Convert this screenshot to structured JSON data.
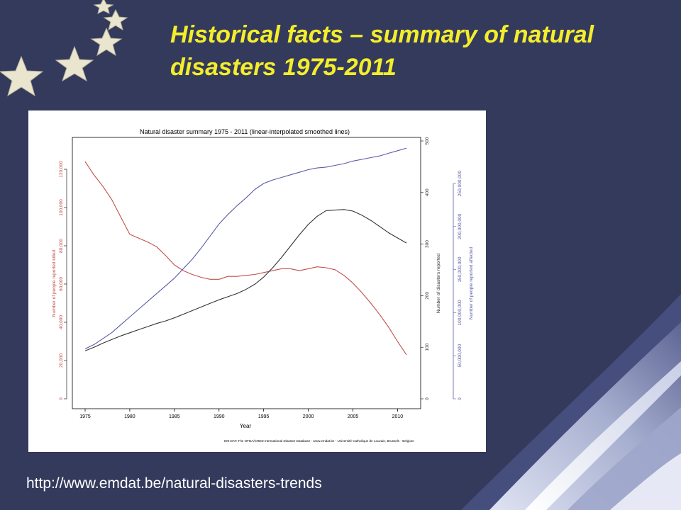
{
  "slide": {
    "title_line1": "Historical facts – summary of natural",
    "title_line2": "disasters 1975-2011",
    "url": "http://www.emdat.be/natural-disasters-trends"
  },
  "colors": {
    "background": "#343a5c",
    "title": "#f4ee2a",
    "killed": "#c0504d",
    "reported": "#333333",
    "affected": "#5a5aa8"
  },
  "chart_data": {
    "type": "line",
    "title": "Natural disaster summary 1975 - 2011 (linear-interpolated smoothed lines)",
    "xlabel": "Year",
    "xlim": [
      1975,
      2011
    ],
    "xticks": [
      1975,
      1980,
      1985,
      1990,
      1995,
      2000,
      2005,
      2010
    ],
    "source": "EM-DAT: The OFDA/CRED International Disaster Database - www.emdat.be - Université Catholique de Louvain, Brussels - Belgium",
    "grid": false,
    "axes": {
      "killed": {
        "label": "Number of people reported killed",
        "ylim": [
          0,
          140000
        ],
        "ticks": [
          0,
          20000,
          40000,
          60000,
          80000,
          100000,
          120000
        ],
        "tick_labels": [
          "0",
          "20,000",
          "40,000",
          "60,000",
          "80,000",
          "100,000",
          "120,000"
        ]
      },
      "reported": {
        "label": "Number of disasters reported",
        "ylim": [
          0,
          500
        ],
        "ticks": [
          0,
          100,
          200,
          300,
          400,
          500
        ],
        "tick_labels": [
          "0",
          "100",
          "200",
          "300",
          "400",
          "500"
        ]
      },
      "affected": {
        "label": "Number of people reported affected",
        "ylim": [
          0,
          275000000
        ],
        "ticks": [
          0,
          50000000,
          100000000,
          150000000,
          200000000,
          250000000
        ],
        "tick_labels": [
          "0",
          "50,000,000",
          "100,000,000",
          "150,000,000",
          "200,000,000",
          "250,000,000"
        ]
      }
    },
    "series": [
      {
        "axis": "killed",
        "x": [
          1975,
          1976,
          1977,
          1978,
          1979,
          1980,
          1981,
          1982,
          1983,
          1984,
          1985,
          1986,
          1987,
          1988,
          1989,
          1990,
          1991,
          1992,
          1993,
          1994,
          1995,
          1996,
          1997,
          1998,
          1999,
          2000,
          2001,
          2002,
          2003,
          2004,
          2005,
          2006,
          2007,
          2008,
          2009,
          2010,
          2011
        ],
        "values": [
          124000,
          117000,
          111000,
          104000,
          95000,
          86000,
          84000,
          82000,
          79500,
          75000,
          70000,
          67000,
          65000,
          63500,
          62500,
          62500,
          64000,
          64000,
          64500,
          65000,
          66000,
          67000,
          68000,
          68000,
          67000,
          68000,
          69000,
          68500,
          67500,
          64500,
          60500,
          55500,
          50000,
          44000,
          37500,
          30000,
          23000
        ]
      },
      {
        "axis": "reported",
        "x": [
          1975,
          1976,
          1977,
          1978,
          1979,
          1980,
          1981,
          1982,
          1983,
          1984,
          1985,
          1986,
          1987,
          1988,
          1989,
          1990,
          1991,
          1992,
          1993,
          1994,
          1995,
          1996,
          1997,
          1998,
          1999,
          2000,
          2001,
          2002,
          2003,
          2004,
          2005,
          2006,
          2007,
          2008,
          2009,
          2010,
          2011
        ],
        "values": [
          93,
          100,
          108,
          115,
          122,
          128,
          134,
          140,
          146,
          151,
          157,
          164,
          171,
          178,
          185,
          192,
          198,
          204,
          212,
          222,
          236,
          254,
          274,
          296,
          318,
          338,
          354,
          365,
          366,
          367,
          364,
          356,
          346,
          334,
          322,
          312,
          302
        ]
      },
      {
        "axis": "affected",
        "x": [
          1975,
          1976,
          1977,
          1978,
          1979,
          1980,
          1981,
          1982,
          1983,
          1984,
          1985,
          1986,
          1987,
          1988,
          1989,
          1990,
          1991,
          1992,
          1993,
          1994,
          1995,
          1996,
          1997,
          1998,
          1999,
          2000,
          2001,
          2002,
          2003,
          2004,
          2005,
          2006,
          2007,
          2008,
          2009,
          2010,
          2011
        ],
        "values": [
          58000000,
          63000000,
          70000000,
          77000000,
          86000000,
          95000000,
          104000000,
          113000000,
          122000000,
          131000000,
          140000000,
          151000000,
          162000000,
          175000000,
          189000000,
          203000000,
          214000000,
          224000000,
          233000000,
          243000000,
          250000000,
          254000000,
          257000000,
          260000000,
          263000000,
          266000000,
          268000000,
          269000000,
          271000000,
          273000000,
          276000000,
          278000000,
          280000000,
          282000000,
          285000000,
          288000000,
          291000000
        ]
      }
    ]
  }
}
